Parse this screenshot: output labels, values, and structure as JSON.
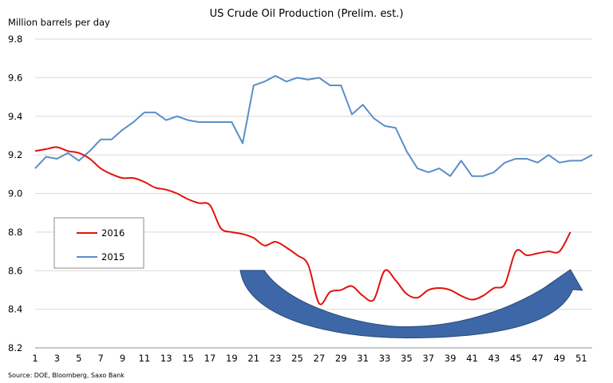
{
  "chart_data": {
    "type": "line",
    "title": "US Crude Oil Production (Prelim. est.)",
    "ylabel": "Million barrels per day",
    "xlabel": "",
    "source": "Source: DOE, Bloomberg, Saxo Bank",
    "ylim": [
      8.2,
      9.8
    ],
    "ytick_values": [
      8.2,
      8.4,
      8.6,
      8.8,
      9.0,
      9.2,
      9.4,
      9.6,
      9.8
    ],
    "ytick_labels": [
      "8.2",
      "8.4",
      "8.6",
      "8.8",
      "9.0",
      "9.2",
      "9.4",
      "9.6",
      "9.8"
    ],
    "xlim": [
      1,
      52
    ],
    "xtick_values": [
      1,
      3,
      5,
      7,
      9,
      11,
      13,
      15,
      17,
      19,
      21,
      23,
      25,
      27,
      29,
      31,
      33,
      35,
      37,
      39,
      41,
      43,
      45,
      47,
      49,
      51
    ],
    "xtick_labels": [
      "1",
      "3",
      "5",
      "7",
      "9",
      "11",
      "13",
      "15",
      "17",
      "19",
      "21",
      "23",
      "25",
      "27",
      "29",
      "31",
      "33",
      "35",
      "37",
      "39",
      "41",
      "43",
      "45",
      "47",
      "49",
      "51"
    ],
    "grid": "horizontal",
    "legend": "left",
    "series": [
      {
        "name": "2016",
        "color": "#e3120b",
        "smooth": true,
        "x": [
          1,
          2,
          3,
          4,
          5,
          6,
          7,
          8,
          9,
          10,
          11,
          12,
          13,
          14,
          15,
          16,
          17,
          18,
          19,
          20,
          21,
          22,
          23,
          24,
          25,
          26,
          27,
          28,
          29,
          30,
          31,
          32,
          33,
          34,
          35,
          36,
          37,
          38,
          39,
          40,
          41,
          42,
          43,
          44,
          45,
          46,
          47,
          48,
          49,
          50
        ],
        "values": [
          9.22,
          9.23,
          9.24,
          9.22,
          9.21,
          9.18,
          9.13,
          9.1,
          9.08,
          9.08,
          9.06,
          9.03,
          9.02,
          9.0,
          8.97,
          8.95,
          8.94,
          8.82,
          8.8,
          8.79,
          8.77,
          8.73,
          8.75,
          8.72,
          8.68,
          8.63,
          8.43,
          8.49,
          8.5,
          8.52,
          8.47,
          8.45,
          8.6,
          8.55,
          8.48,
          8.46,
          8.5,
          8.51,
          8.5,
          8.47,
          8.45,
          8.47,
          8.51,
          8.53,
          8.7,
          8.68,
          8.69,
          8.7,
          8.7,
          8.8
        ]
      },
      {
        "name": "2015",
        "color": "#5b8ec9",
        "smooth": false,
        "x": [
          1,
          2,
          3,
          4,
          5,
          6,
          7,
          8,
          9,
          10,
          11,
          12,
          13,
          14,
          15,
          16,
          17,
          18,
          19,
          20,
          21,
          22,
          23,
          24,
          25,
          26,
          27,
          28,
          29,
          30,
          31,
          32,
          33,
          34,
          35,
          36,
          37,
          38,
          39,
          40,
          41,
          42,
          43,
          44,
          45,
          46,
          47,
          48,
          49,
          50,
          51,
          52
        ],
        "values": [
          9.13,
          9.19,
          9.18,
          9.21,
          9.17,
          9.22,
          9.28,
          9.28,
          9.33,
          9.37,
          9.42,
          9.42,
          9.38,
          9.4,
          9.38,
          9.37,
          9.37,
          9.37,
          9.37,
          9.26,
          9.56,
          9.58,
          9.61,
          9.58,
          9.6,
          9.59,
          9.6,
          9.56,
          9.56,
          9.41,
          9.46,
          9.39,
          9.35,
          9.34,
          9.22,
          9.13,
          9.11,
          9.13,
          9.09,
          9.17,
          9.09,
          9.09,
          9.11,
          9.16,
          9.18,
          9.18,
          9.16,
          9.2,
          9.16,
          9.17,
          9.17,
          9.2
        ]
      }
    ],
    "legend_entries": [
      {
        "label": "2016",
        "color": "#e3120b"
      },
      {
        "label": "2015",
        "color": "#5b8ec9"
      }
    ],
    "annotations": [
      {
        "type": "curved-arrow",
        "from_x": 20,
        "to_x": 50,
        "low_y": 8.26,
        "color": "#3d67a6"
      }
    ]
  }
}
